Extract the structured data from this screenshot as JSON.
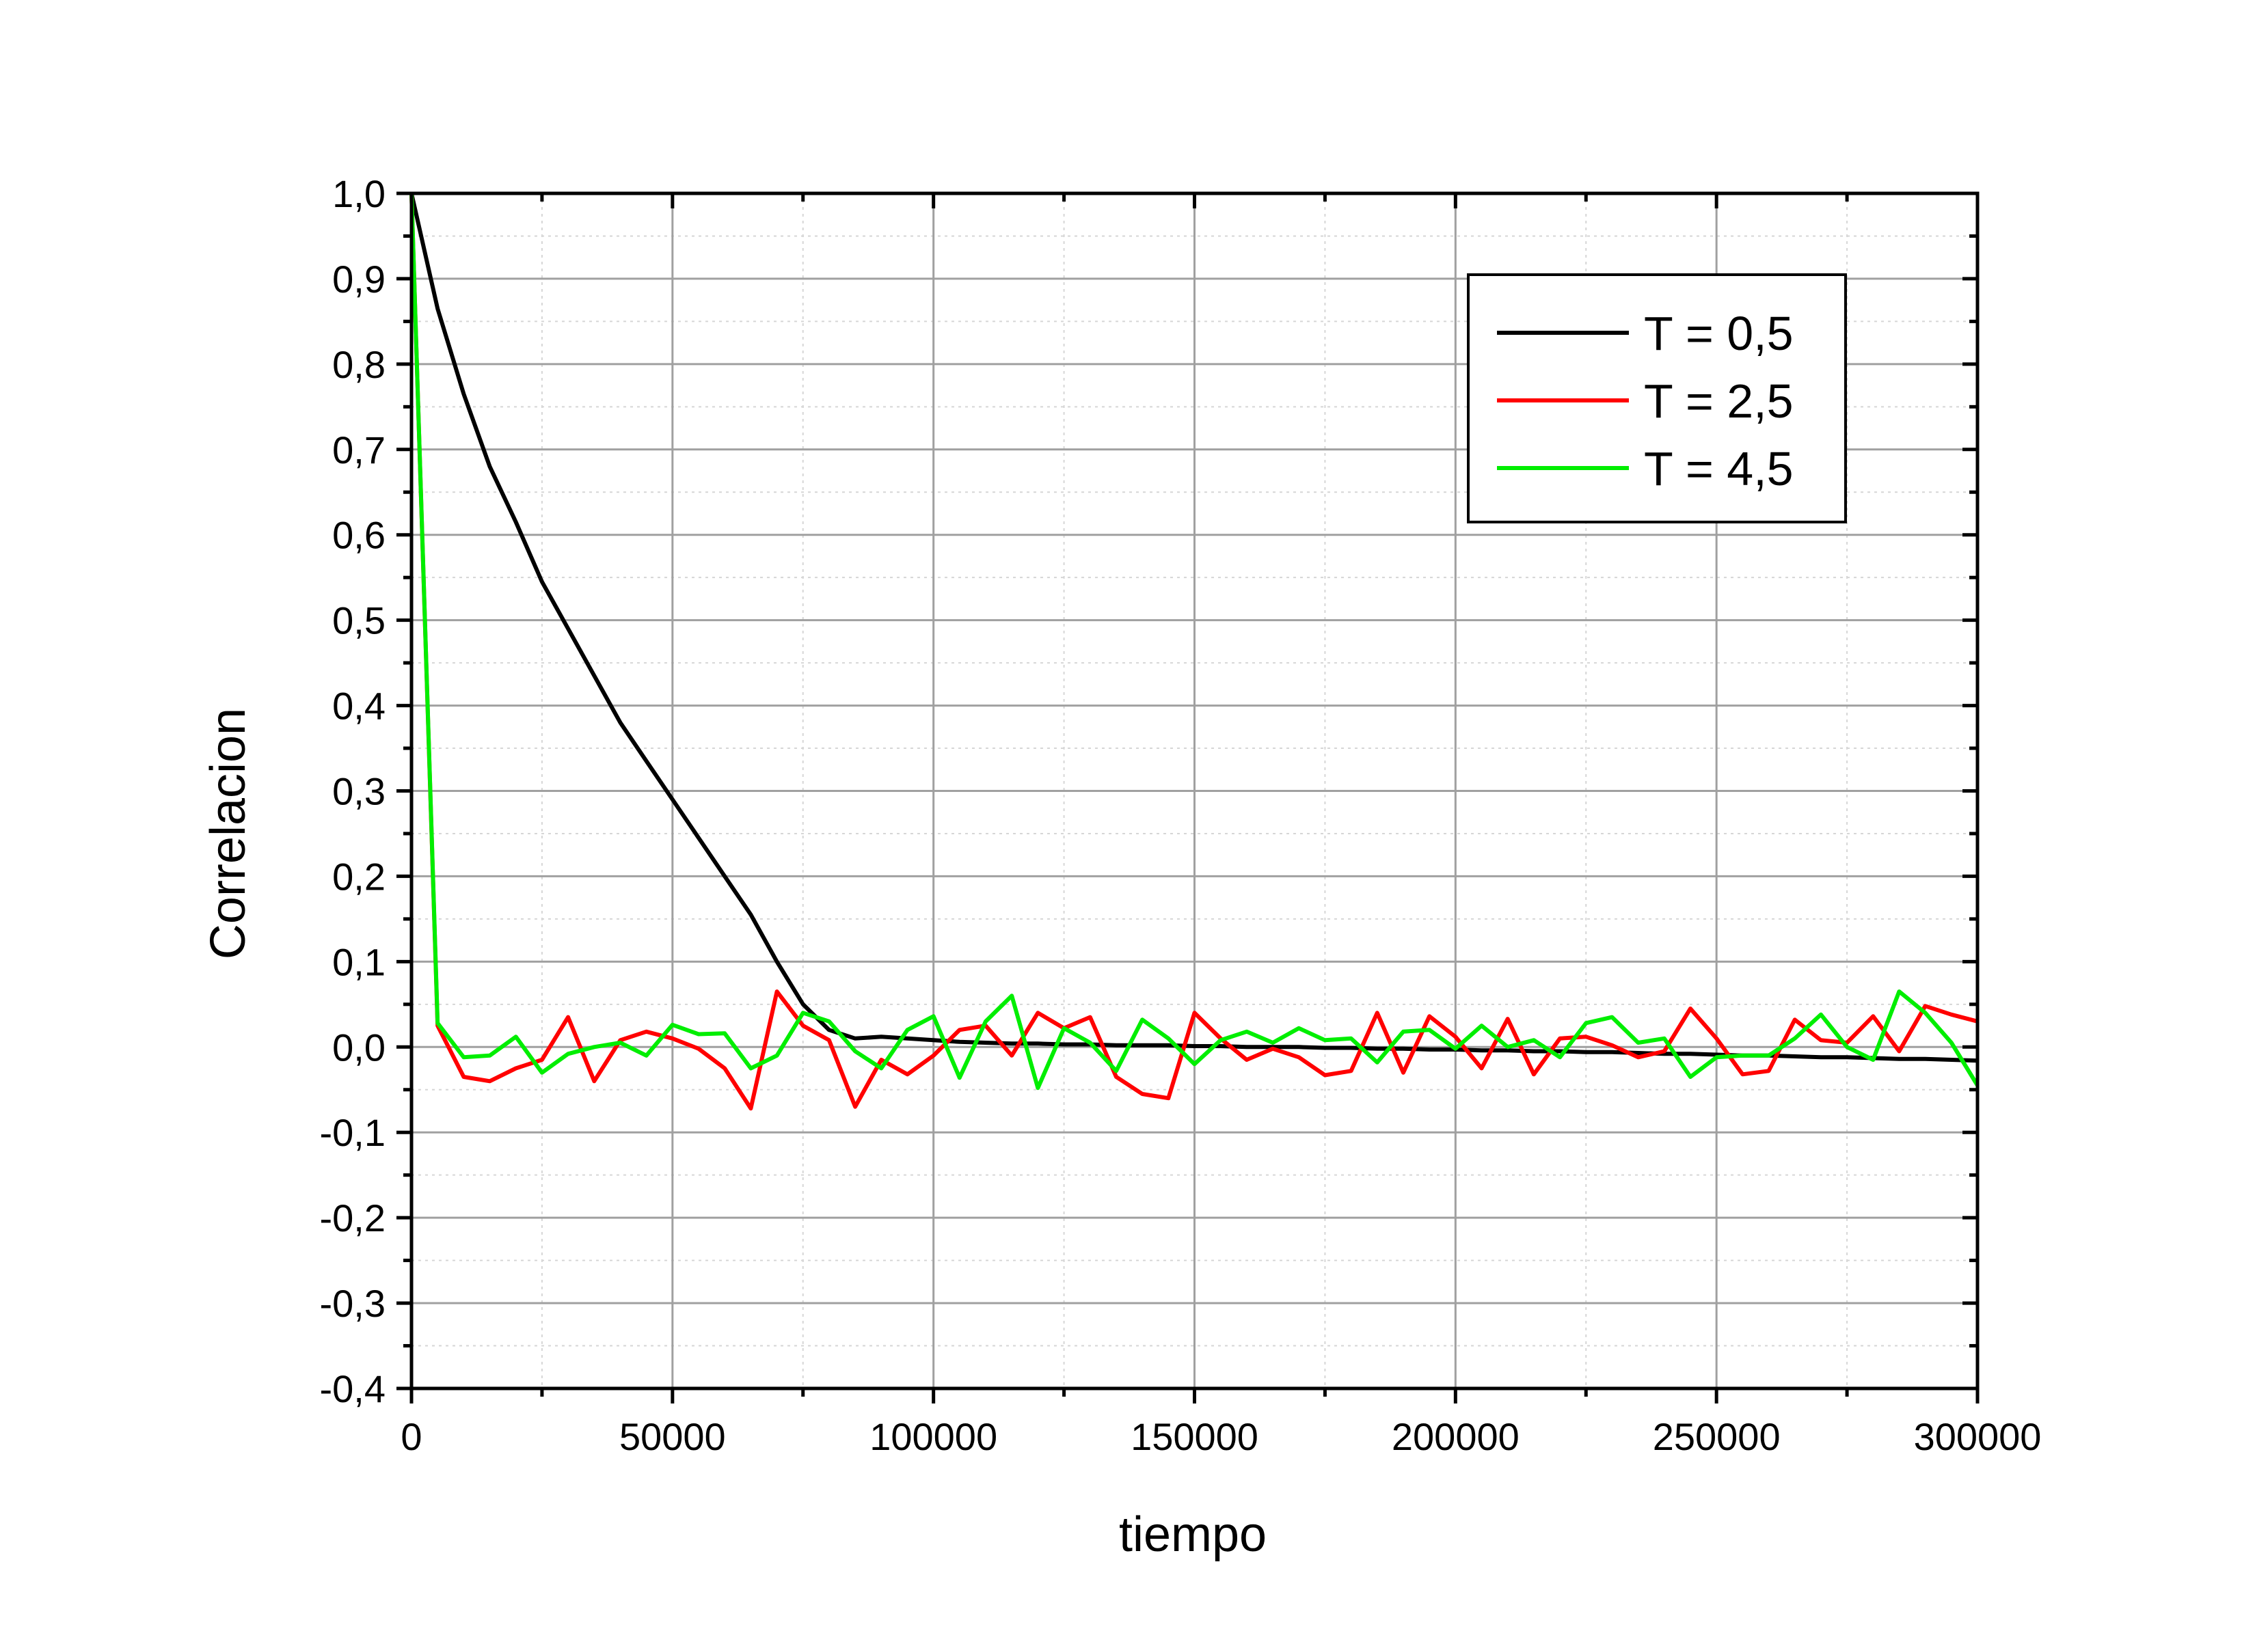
{
  "chart_data": {
    "type": "line",
    "title": "",
    "xlabel": "tiempo",
    "ylabel": "Correlacion",
    "xlim": [
      0,
      300000
    ],
    "ylim": [
      -0.4,
      1.0
    ],
    "x_ticks": [
      0,
      50000,
      100000,
      150000,
      200000,
      250000,
      300000
    ],
    "x_tick_labels": [
      "0",
      "50000",
      "100000",
      "150000",
      "200000",
      "250000",
      "300000"
    ],
    "y_ticks": [
      1.0,
      0.9,
      0.8,
      0.7,
      0.6,
      0.5,
      0.4,
      0.3,
      0.2,
      0.1,
      0.0,
      -0.1,
      -0.2,
      -0.3,
      -0.4
    ],
    "y_tick_labels": [
      "1,0",
      "0,9",
      "0,8",
      "0,7",
      "0,6",
      "0,5",
      "0,4",
      "0,3",
      "0,2",
      "0,1",
      "0,0",
      "-0,1",
      "-0,2",
      "-0,3",
      "-0,4"
    ],
    "grid": true,
    "legend_position": "top-right",
    "x": [
      0,
      5000,
      10000,
      15000,
      20000,
      25000,
      30000,
      35000,
      40000,
      45000,
      50000,
      55000,
      60000,
      65000,
      70000,
      75000,
      80000,
      85000,
      90000,
      95000,
      100000,
      105000,
      110000,
      115000,
      120000,
      125000,
      130000,
      135000,
      140000,
      145000,
      150000,
      155000,
      160000,
      165000,
      170000,
      175000,
      180000,
      185000,
      190000,
      195000,
      200000,
      205000,
      210000,
      215000,
      220000,
      225000,
      230000,
      235000,
      240000,
      245000,
      250000,
      255000,
      260000,
      265000,
      270000,
      275000,
      280000,
      285000,
      290000,
      295000,
      300000
    ],
    "series": [
      {
        "name": "T = 0,5",
        "color": "#000000",
        "values": [
          1.0,
          0.865,
          0.765,
          0.68,
          0.615,
          0.545,
          0.49,
          0.435,
          0.38,
          0.335,
          0.29,
          0.245,
          0.2,
          0.155,
          0.1,
          0.05,
          0.02,
          0.01,
          0.012,
          0.01,
          0.008,
          0.006,
          0.005,
          0.004,
          0.004,
          0.003,
          0.003,
          0.002,
          0.002,
          0.002,
          0.001,
          0.001,
          0.0,
          0.0,
          0.0,
          -0.001,
          -0.001,
          -0.002,
          -0.002,
          -0.003,
          -0.003,
          -0.004,
          -0.004,
          -0.005,
          -0.005,
          -0.006,
          -0.006,
          -0.007,
          -0.008,
          -0.008,
          -0.009,
          -0.01,
          -0.01,
          -0.011,
          -0.012,
          -0.012,
          -0.013,
          -0.014,
          -0.014,
          -0.015,
          -0.016
        ]
      },
      {
        "name": "T = 2,5",
        "color": "#ff0000",
        "values": [
          1.0,
          0.025,
          -0.035,
          -0.04,
          -0.025,
          -0.015,
          0.035,
          -0.04,
          0.008,
          0.018,
          0.01,
          -0.002,
          -0.025,
          -0.072,
          0.065,
          0.025,
          0.008,
          -0.07,
          -0.015,
          -0.032,
          -0.01,
          0.02,
          0.025,
          -0.01,
          0.04,
          0.022,
          0.035,
          -0.035,
          -0.055,
          -0.06,
          0.04,
          0.01,
          -0.015,
          -0.002,
          -0.012,
          -0.033,
          -0.028,
          0.04,
          -0.03,
          0.036,
          0.012,
          -0.025,
          0.033,
          -0.032,
          0.01,
          0.012,
          0.002,
          -0.012,
          -0.005,
          0.045,
          0.01,
          -0.032,
          -0.028,
          0.032,
          0.008,
          0.005,
          0.036,
          -0.005,
          0.048,
          0.038,
          0.03
        ]
      },
      {
        "name": "T = 4,5",
        "color": "#00ee00",
        "values": [
          1.0,
          0.028,
          -0.012,
          -0.01,
          0.012,
          -0.03,
          -0.008,
          0.0,
          0.005,
          -0.01,
          0.026,
          0.015,
          0.016,
          -0.025,
          -0.01,
          0.04,
          0.03,
          -0.005,
          -0.025,
          0.02,
          0.036,
          -0.036,
          0.03,
          0.06,
          -0.048,
          0.022,
          0.005,
          -0.028,
          0.032,
          0.01,
          -0.02,
          0.008,
          0.018,
          0.005,
          0.022,
          0.008,
          0.01,
          -0.018,
          0.018,
          0.02,
          -0.002,
          0.025,
          0.0,
          0.008,
          -0.012,
          0.028,
          0.035,
          0.005,
          0.01,
          -0.035,
          -0.012,
          -0.01,
          -0.01,
          0.01,
          0.038,
          0.0,
          -0.015,
          0.065,
          0.04,
          0.005,
          -0.045
        ]
      }
    ]
  }
}
